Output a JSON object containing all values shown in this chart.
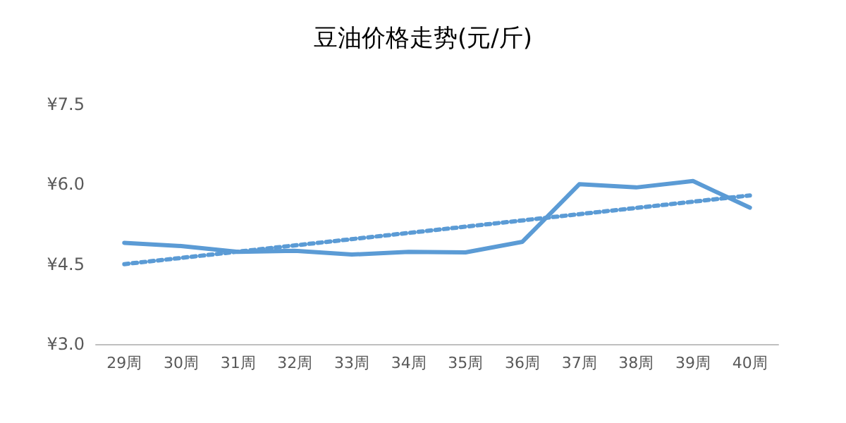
{
  "chart_data": {
    "type": "line",
    "title": "豆油价格走势(元/斤)",
    "categories": [
      "29周",
      "30周",
      "31周",
      "32周",
      "33周",
      "34周",
      "35周",
      "36周",
      "37周",
      "38周",
      "39周",
      "40周"
    ],
    "series": [
      {
        "color": "#5b9bd5",
        "values": [
          4.9,
          4.84,
          4.73,
          4.75,
          4.68,
          4.73,
          4.72,
          4.92,
          6.0,
          5.94,
          6.06,
          5.56
        ]
      },
      {
        "type": "line",
        "color": "#5b9bd5",
        "line_style": "dotted",
        "x": [
          "29周",
          "40周"
        ],
        "values": [
          4.5,
          5.79
        ]
      }
    ],
    "ylim": [
      3.0,
      7.5
    ],
    "yticks": [
      {
        "value": 3.0,
        "label": "¥3.0"
      },
      {
        "value": 4.5,
        "label": "¥4.5"
      },
      {
        "value": 6.0,
        "label": "¥6.0"
      },
      {
        "value": 7.5,
        "label": "¥7.5"
      }
    ],
    "grid": false,
    "marker": "none",
    "line_style": "solid"
  }
}
